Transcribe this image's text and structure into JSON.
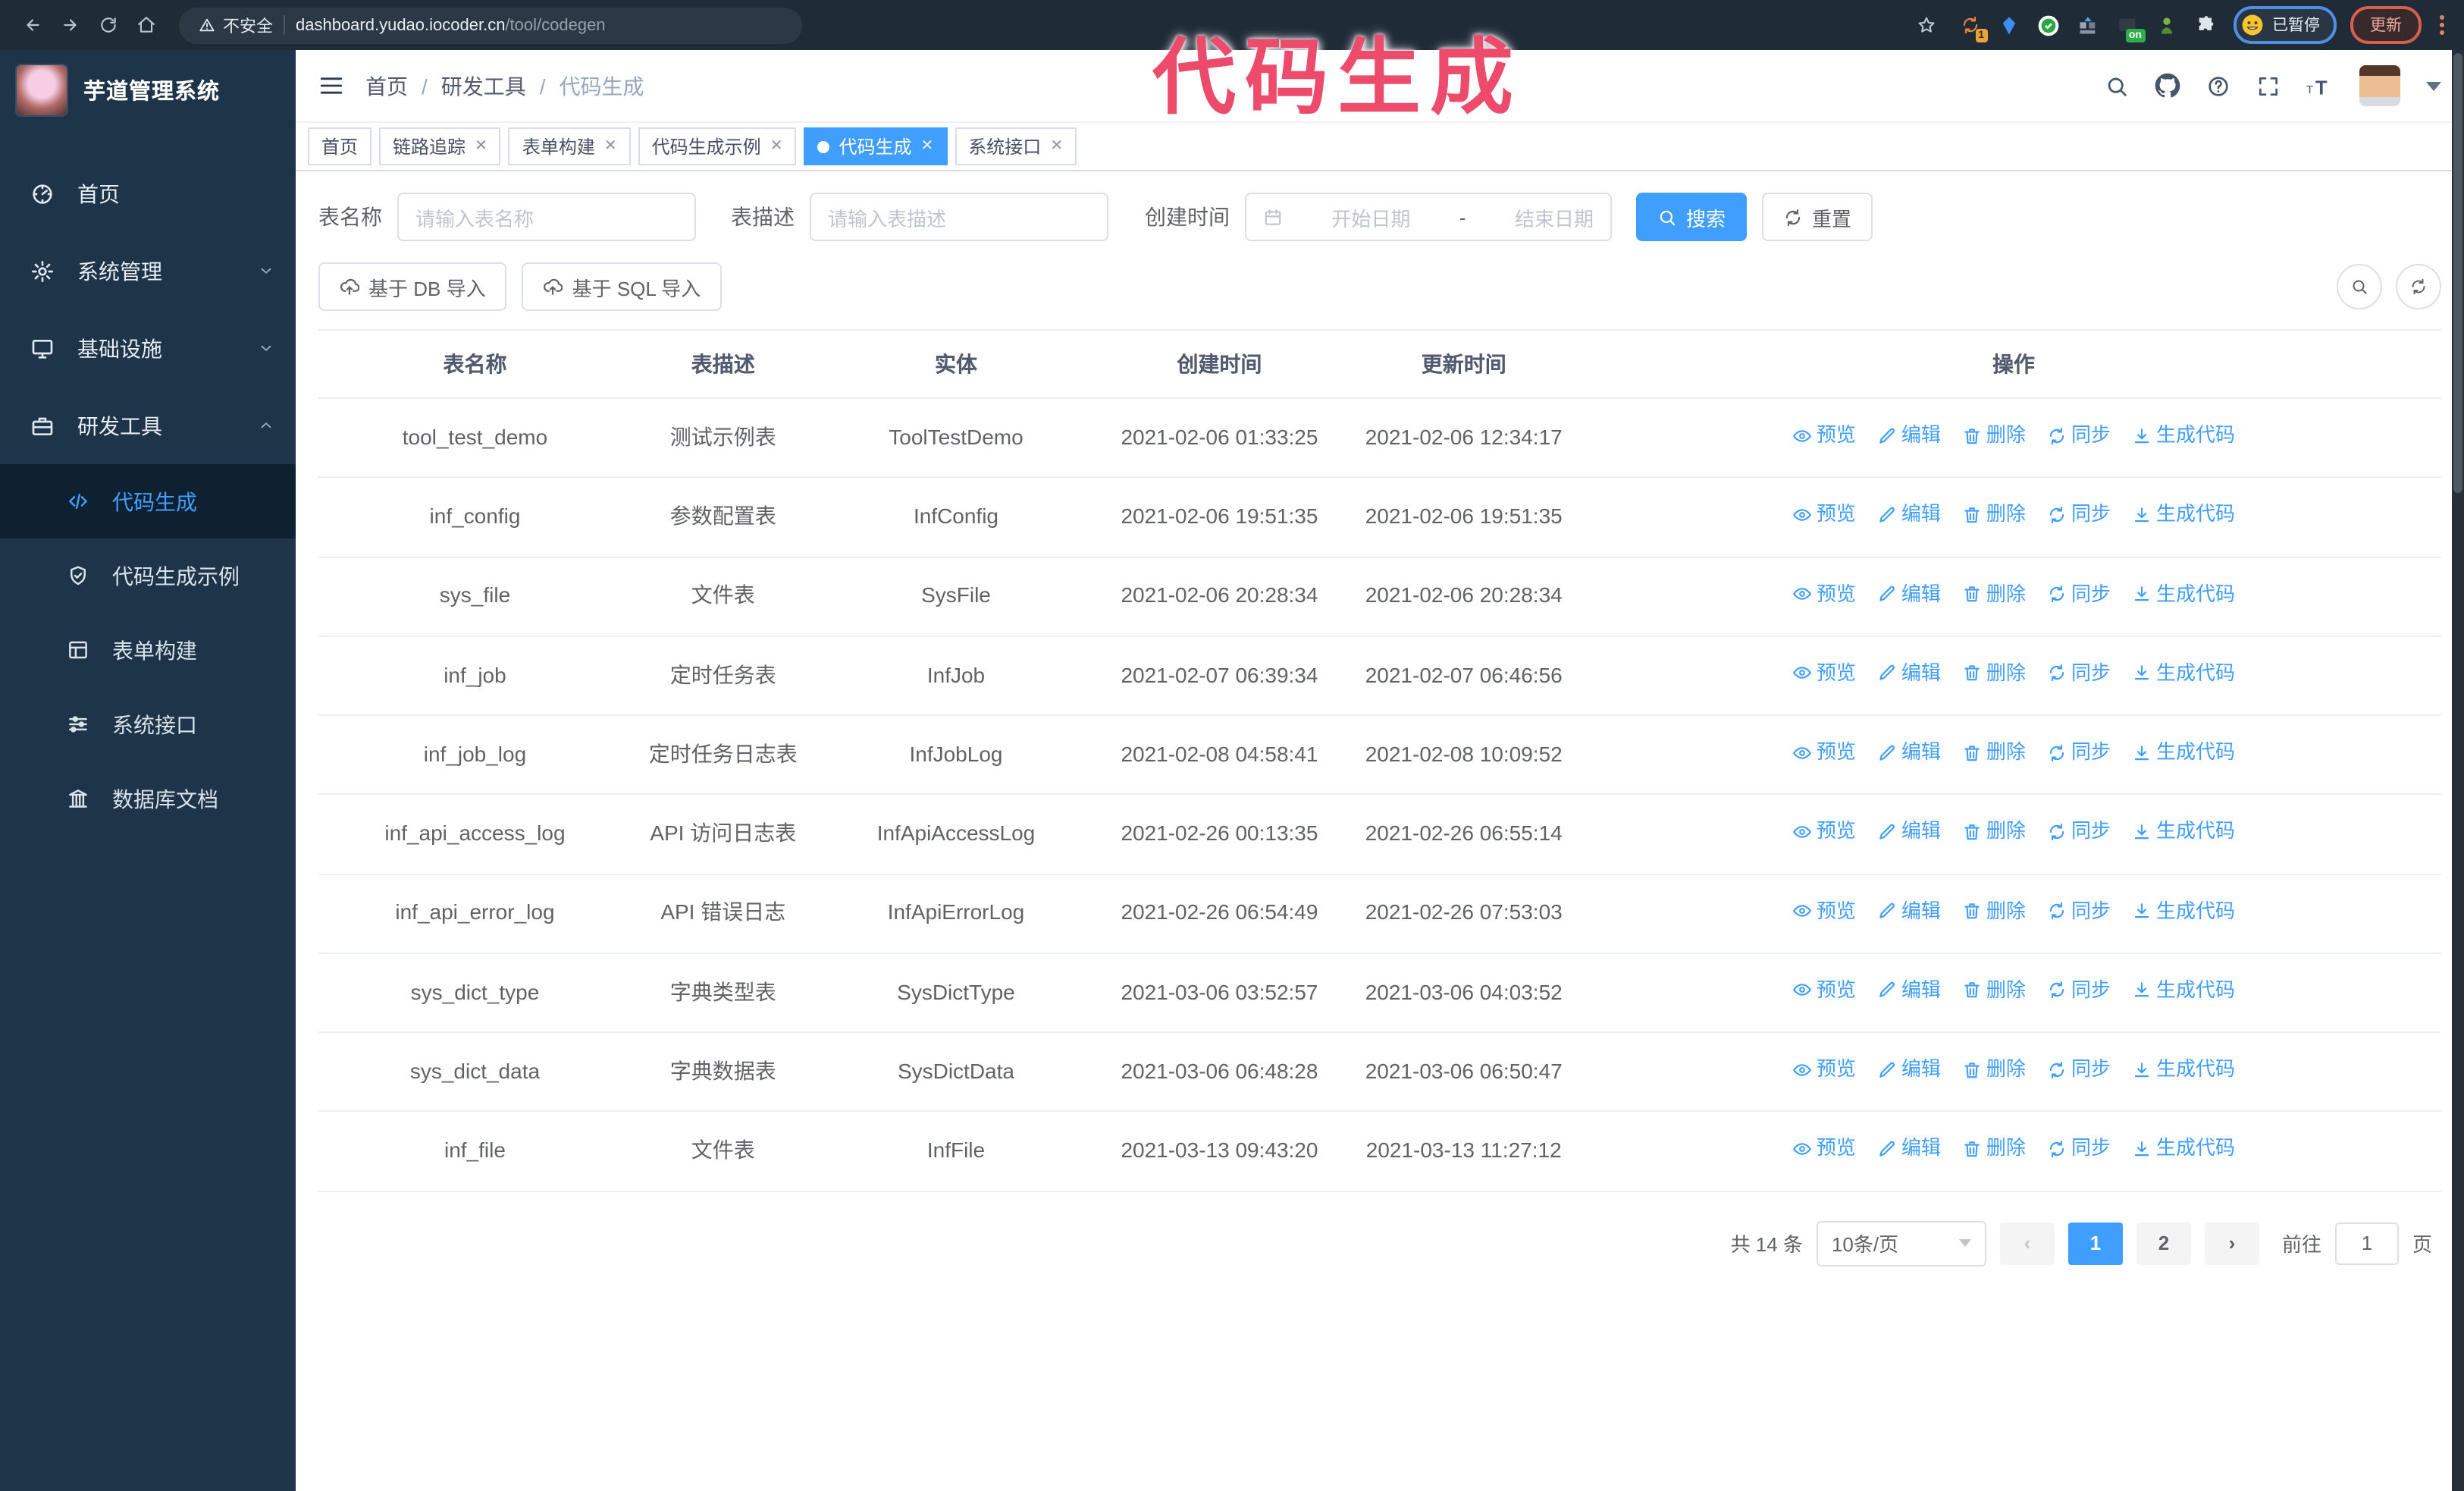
{
  "annotation": {
    "text": "代码生成",
    "color": "#ed4b6c"
  },
  "browser": {
    "security_label": "不安全",
    "url_host": "dashboard.yudao.iocoder.cn",
    "url_path": "/tool/codegen",
    "profile_status": "已暂停",
    "update_label": "更新",
    "extensions": [
      "sync-orange-extension-icon",
      "gem-blue-extension-icon",
      "circle-green-extension-icon",
      "grid-blue-extension-icon",
      "dark-on-extension-icon",
      "bot-green-extension-icon",
      "puzzle-extension-icon"
    ]
  },
  "sidebar": {
    "title": "芋道管理系统",
    "items": [
      {
        "label": "首页",
        "icon": "dashboard-icon",
        "chevron": ""
      },
      {
        "label": "系统管理",
        "icon": "gear-icon",
        "chevron": "down"
      },
      {
        "label": "基础设施",
        "icon": "monitor-icon",
        "chevron": "down"
      },
      {
        "label": "研发工具",
        "icon": "toolbox-icon",
        "chevron": "up"
      }
    ],
    "sub_items": [
      {
        "label": "代码生成",
        "icon": "code-icon",
        "active": true
      },
      {
        "label": "代码生成示例",
        "icon": "shield-check-icon",
        "active": false
      },
      {
        "label": "表单构建",
        "icon": "form-icon",
        "active": false
      },
      {
        "label": "系统接口",
        "icon": "sliders-icon",
        "active": false
      },
      {
        "label": "数据库文档",
        "icon": "columns-icon",
        "active": false
      }
    ]
  },
  "header": {
    "breadcrumb": [
      "首页",
      "研发工具",
      "代码生成"
    ]
  },
  "tabs": [
    {
      "label": "首页",
      "closable": false,
      "active": false
    },
    {
      "label": "链路追踪",
      "closable": true,
      "active": false
    },
    {
      "label": "表单构建",
      "closable": true,
      "active": false
    },
    {
      "label": "代码生成示例",
      "closable": true,
      "active": false
    },
    {
      "label": "代码生成",
      "closable": true,
      "active": true
    },
    {
      "label": "系统接口",
      "closable": true,
      "active": false
    }
  ],
  "search": {
    "name_label": "表名称",
    "name_placeholder": "请输入表名称",
    "desc_label": "表描述",
    "desc_placeholder": "请输入表描述",
    "time_label": "创建时间",
    "start_placeholder": "开始日期",
    "range_separator": "-",
    "end_placeholder": "结束日期",
    "search_label": "搜索",
    "reset_label": "重置"
  },
  "toolbar": {
    "db_import_label": "基于 DB 导入",
    "sql_import_label": "基于 SQL 导入"
  },
  "table": {
    "columns": [
      "表名称",
      "表描述",
      "实体",
      "创建时间",
      "更新时间",
      "操作"
    ],
    "actions": [
      {
        "icon": "eye-icon",
        "label": "预览"
      },
      {
        "icon": "edit-icon",
        "label": "编辑"
      },
      {
        "icon": "trash-icon",
        "label": "删除"
      },
      {
        "icon": "sync-icon",
        "label": "同步"
      },
      {
        "icon": "download-icon",
        "label": "生成代码"
      }
    ],
    "rows": [
      {
        "name": "tool_test_demo",
        "desc": "测试示例表",
        "entity": "ToolTestDemo",
        "created": "2021-02-06 01:33:25",
        "updated": "2021-02-06 12:34:17"
      },
      {
        "name": "inf_config",
        "desc": "参数配置表",
        "entity": "InfConfig",
        "created": "2021-02-06 19:51:35",
        "updated": "2021-02-06 19:51:35"
      },
      {
        "name": "sys_file",
        "desc": "文件表",
        "entity": "SysFile",
        "created": "2021-02-06 20:28:34",
        "updated": "2021-02-06 20:28:34"
      },
      {
        "name": "inf_job",
        "desc": "定时任务表",
        "entity": "InfJob",
        "created": "2021-02-07 06:39:34",
        "updated": "2021-02-07 06:46:56"
      },
      {
        "name": "inf_job_log",
        "desc": "定时任务日志表",
        "entity": "InfJobLog",
        "created": "2021-02-08 04:58:41",
        "updated": "2021-02-08 10:09:52"
      },
      {
        "name": "inf_api_access_log",
        "desc": "API 访问日志表",
        "entity": "InfApiAccessLog",
        "created": "2021-02-26 00:13:35",
        "updated": "2021-02-26 06:55:14"
      },
      {
        "name": "inf_api_error_log",
        "desc": "API 错误日志",
        "entity": "InfApiErrorLog",
        "created": "2021-02-26 06:54:49",
        "updated": "2021-02-26 07:53:03"
      },
      {
        "name": "sys_dict_type",
        "desc": "字典类型表",
        "entity": "SysDictType",
        "created": "2021-03-06 03:52:57",
        "updated": "2021-03-06 04:03:52"
      },
      {
        "name": "sys_dict_data",
        "desc": "字典数据表",
        "entity": "SysDictData",
        "created": "2021-03-06 06:48:28",
        "updated": "2021-03-06 06:50:47"
      },
      {
        "name": "inf_file",
        "desc": "文件表",
        "entity": "InfFile",
        "created": "2021-03-13 09:43:20",
        "updated": "2021-03-13 11:27:12"
      }
    ]
  },
  "pagination": {
    "total_label": "共 14 条",
    "page_size": "10条/页",
    "pages": [
      "1",
      "2"
    ],
    "active_page": "1",
    "goto_label": "前往",
    "goto_value": "1",
    "unit_label": "页"
  },
  "colors": {
    "accent": "#409eff",
    "annotation": "#ed4b6c",
    "sidebar_bg": "#1e3448",
    "browser_bg": "#202b38"
  }
}
